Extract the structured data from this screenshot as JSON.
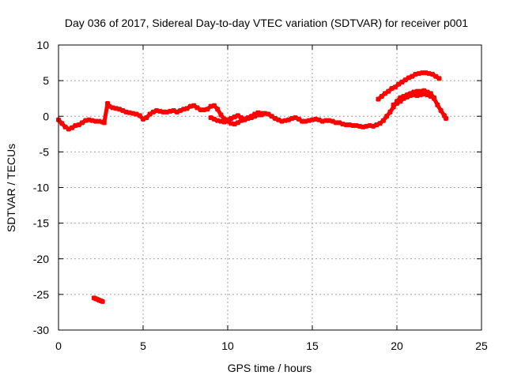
{
  "chart_data": {
    "type": "scatter",
    "title": "Day 036 of 2017, Sidereal Day-to-day VTEC variation (SDTVAR) for receiver p001",
    "xlabel": "GPS time / hours",
    "ylabel": "SDTVAR / TECUs",
    "xlim": [
      0,
      25
    ],
    "ylim": [
      -30,
      10
    ],
    "x_ticks": [
      0,
      5,
      10,
      15,
      20,
      25
    ],
    "y_ticks": [
      -30,
      -25,
      -20,
      -15,
      -10,
      -5,
      0,
      5,
      10
    ],
    "grid": true,
    "marker_color": "#ff0000",
    "series": [
      {
        "name": "main",
        "x": [
          0.0,
          0.2,
          0.4,
          0.6,
          0.8,
          1.0,
          1.2,
          1.4,
          1.6,
          1.8,
          2.0,
          2.2,
          2.4,
          2.6,
          2.7,
          2.9,
          3.0,
          3.2,
          3.4,
          3.6,
          3.8,
          4.0,
          4.2,
          4.4,
          4.6,
          4.8,
          5.0,
          5.2,
          5.4,
          5.6,
          5.8,
          6.0,
          6.2,
          6.4,
          6.6,
          6.8,
          7.0,
          7.2,
          7.4,
          7.6,
          7.8,
          8.0,
          8.2,
          8.4,
          8.6,
          8.8,
          9.0,
          9.2,
          9.4,
          9.6,
          9.8,
          10.0,
          10.2,
          10.4,
          10.6,
          10.8,
          11.0,
          11.2,
          11.4,
          11.6,
          11.8,
          12.0,
          12.2,
          12.4,
          12.6,
          12.8,
          13.0,
          13.2,
          13.4,
          13.6,
          13.8,
          14.0,
          14.2,
          14.4,
          14.6,
          14.8,
          15.0,
          15.2,
          15.4,
          15.6,
          15.8,
          16.0,
          16.2,
          16.4,
          16.6,
          16.8,
          17.0,
          17.2,
          17.4,
          17.6,
          17.8,
          18.0,
          18.2,
          18.4,
          18.6,
          18.8,
          19.0,
          19.2,
          19.4,
          19.6,
          19.8,
          20.0,
          20.2,
          20.4,
          20.6,
          20.8,
          21.0,
          21.2,
          21.4,
          21.6,
          21.8,
          22.0,
          22.2,
          22.4,
          22.6,
          22.8,
          22.9
        ],
        "y": [
          -0.5,
          -1.0,
          -1.5,
          -1.8,
          -1.6,
          -1.3,
          -1.2,
          -0.9,
          -0.6,
          -0.5,
          -0.6,
          -0.7,
          -0.7,
          -0.8,
          -0.9,
          1.8,
          1.4,
          1.2,
          1.1,
          1.0,
          0.8,
          0.6,
          0.5,
          0.4,
          0.3,
          0.1,
          -0.4,
          -0.2,
          0.3,
          0.6,
          0.8,
          0.7,
          0.6,
          0.6,
          0.7,
          0.8,
          0.6,
          0.8,
          1.0,
          1.1,
          1.4,
          1.5,
          1.2,
          0.9,
          0.9,
          1.0,
          1.4,
          1.5,
          1.0,
          0.2,
          -0.4,
          -0.7,
          -1.0,
          -1.1,
          -0.9,
          -0.6,
          -0.5,
          -0.3,
          -0.2,
          0.0,
          0.2,
          0.2,
          0.4,
          0.3,
          0.0,
          -0.3,
          -0.5,
          -0.7,
          -0.6,
          -0.5,
          -0.3,
          -0.2,
          -0.4,
          -0.7,
          -0.7,
          -0.6,
          -0.5,
          -0.4,
          -0.5,
          -0.7,
          -0.6,
          -0.6,
          -0.7,
          -0.9,
          -0.9,
          -1.1,
          -1.2,
          -1.2,
          -1.3,
          -1.3,
          -1.4,
          -1.5,
          -1.4,
          -1.3,
          -1.4,
          -1.2,
          -1.0,
          -0.6,
          0.0,
          0.6,
          1.3,
          2.1,
          2.6,
          2.8,
          3.0,
          3.2,
          3.4,
          3.5,
          3.5,
          3.6,
          3.4,
          3.2,
          2.5,
          1.6,
          0.8,
          0.1,
          -0.3
        ]
      },
      {
        "name": "upper-branch",
        "x": [
          18.9,
          19.1,
          19.3,
          19.5,
          19.7,
          19.9,
          20.1,
          20.3,
          20.5,
          20.7,
          20.9,
          21.1,
          21.3,
          21.5,
          21.7,
          21.9,
          22.1,
          22.3,
          22.5
        ],
        "y": [
          2.4,
          2.8,
          3.2,
          3.5,
          3.9,
          4.1,
          4.5,
          4.8,
          5.1,
          5.4,
          5.6,
          5.9,
          6.0,
          6.1,
          6.1,
          6.0,
          5.9,
          5.6,
          5.3
        ]
      },
      {
        "name": "lower-branch",
        "x": [
          19.8,
          20.0,
          20.2,
          20.4,
          20.6,
          20.8,
          21.0,
          21.2,
          21.4,
          21.6,
          21.8,
          22.0,
          22.2
        ],
        "y": [
          1.6,
          1.8,
          2.1,
          2.5,
          2.7,
          2.9,
          3.0,
          2.9,
          3.0,
          3.1,
          3.0,
          2.8,
          2.6
        ]
      },
      {
        "name": "second-mid-track",
        "x": [
          9.0,
          9.2,
          9.4,
          9.6,
          9.8,
          10.0,
          10.2,
          10.4,
          10.6,
          10.8,
          11.0,
          11.2,
          11.4,
          11.6,
          11.8,
          12.0
        ],
        "y": [
          -0.2,
          -0.4,
          -0.6,
          -0.7,
          -0.8,
          -0.5,
          -0.3,
          -0.1,
          0.1,
          -0.2,
          -0.4,
          -0.2,
          0.0,
          0.3,
          0.5,
          0.4
        ]
      },
      {
        "name": "outlier",
        "x": [
          2.1,
          2.2,
          2.3,
          2.4,
          2.5,
          2.6
        ],
        "y": [
          -25.5,
          -25.6,
          -25.7,
          -25.8,
          -25.9,
          -26.0
        ]
      }
    ]
  }
}
